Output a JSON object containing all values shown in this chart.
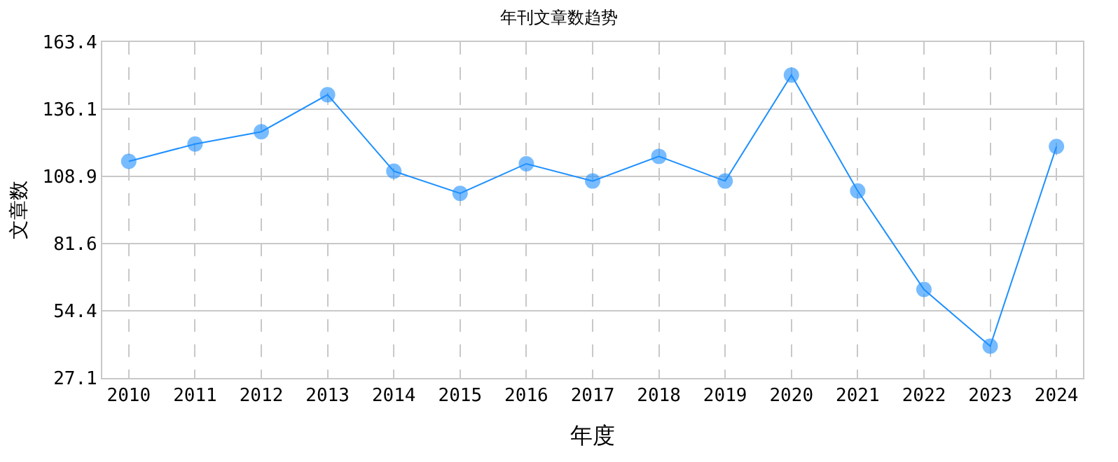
{
  "chart_data": {
    "type": "line",
    "title": "年刊文章数趋势",
    "xlabel": "年度",
    "ylabel": "文章数",
    "categories": [
      "2010",
      "2011",
      "2012",
      "2013",
      "2014",
      "2015",
      "2016",
      "2017",
      "2018",
      "2019",
      "2020",
      "2021",
      "2022",
      "2023",
      "2024"
    ],
    "series": [
      {
        "color": "#1e90ff",
        "values": [
          115,
          122,
          127,
          142,
          111,
          102,
          114,
          107,
          117,
          107,
          150,
          103,
          63,
          40,
          121
        ]
      }
    ],
    "ylim": [
      27.1,
      163.4
    ],
    "yticks": [
      27.1,
      54.4,
      81.6,
      108.9,
      136.1,
      163.4
    ],
    "grid": true,
    "marker": "circle",
    "line_style": "solid"
  }
}
